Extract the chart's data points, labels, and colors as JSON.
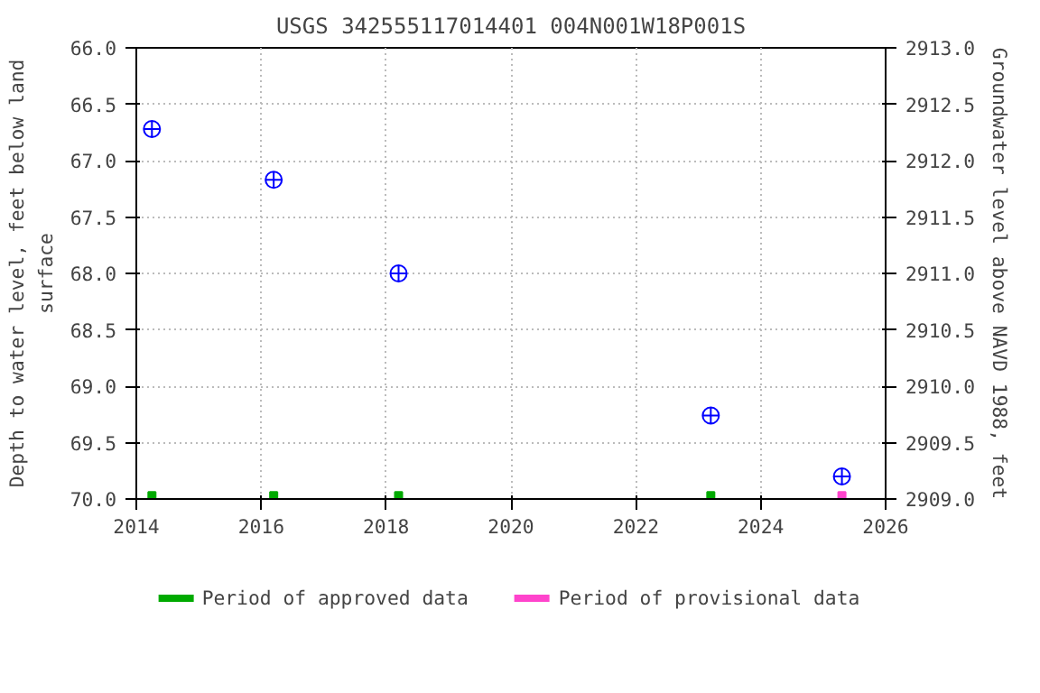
{
  "chart_data": {
    "type": "scatter",
    "title": "USGS 342555117014401 004N001W18P001S",
    "ylabel": "Depth to water level, feet below land surface",
    "y2label": "Groundwater level above NAVD 1988, feet",
    "xlim": [
      2014,
      2026
    ],
    "xticks": [
      2014,
      2016,
      2018,
      2020,
      2022,
      2024,
      2026
    ],
    "ylim": [
      70,
      66
    ],
    "yticks": [
      {
        "value": 66,
        "label": "66.0"
      },
      {
        "value": 66.5,
        "label": "66.5"
      },
      {
        "value": 67,
        "label": "67.0"
      },
      {
        "value": 67.5,
        "label": "67.5"
      },
      {
        "value": 68,
        "label": "68.0"
      },
      {
        "value": 68.5,
        "label": "68.5"
      },
      {
        "value": 69,
        "label": "69.0"
      },
      {
        "value": 69.5,
        "label": "69.5"
      },
      {
        "value": 70,
        "label": "70.0"
      }
    ],
    "y2lim": [
      2909,
      2913
    ],
    "y2ticks": [
      {
        "value": 2909,
        "label": "2909.0"
      },
      {
        "value": 2909.5,
        "label": "2909.5"
      },
      {
        "value": 2910,
        "label": "2910.0"
      },
      {
        "value": 2910.5,
        "label": "2910.5"
      },
      {
        "value": 2911,
        "label": "2911.0"
      },
      {
        "value": 2911.5,
        "label": "2911.5"
      },
      {
        "value": 2912,
        "label": "2912.0"
      },
      {
        "value": 2912.5,
        "label": "2912.5"
      },
      {
        "value": 2913,
        "label": "2913.0"
      }
    ],
    "grid": true,
    "legend": "bottom",
    "series": [
      {
        "color": "#0000ff",
        "marker": "circle",
        "x": [
          2014.25,
          2016.2,
          2018.2,
          2023.2,
          2025.3
        ],
        "values": [
          66.72,
          67.17,
          68.0,
          69.26,
          69.8
        ]
      },
      {
        "name": "Period of approved data",
        "color": "#00aa00",
        "marker": "square",
        "x": [
          2014.25,
          2016.2,
          2018.2,
          2023.2
        ],
        "values": [
          69.97,
          69.97,
          69.97,
          69.97
        ]
      },
      {
        "name": "Period of provisional data",
        "color": "#ff44cc",
        "marker": "square",
        "x": [
          2025.3
        ],
        "values": [
          69.97
        ]
      }
    ]
  }
}
